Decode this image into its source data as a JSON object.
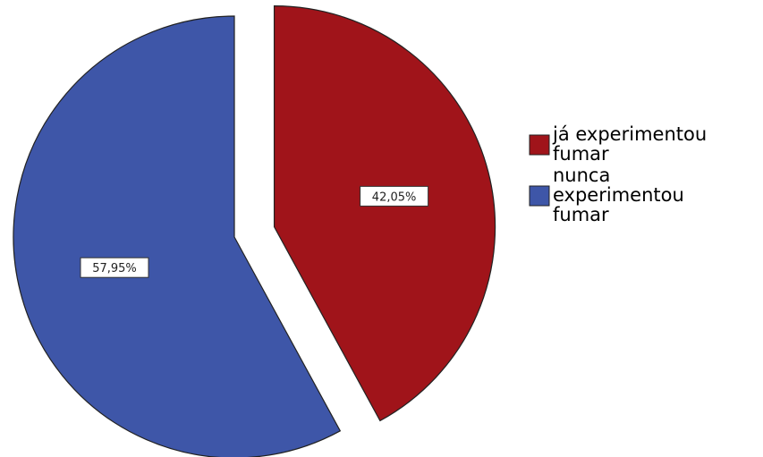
{
  "chart_data": {
    "type": "pie",
    "title": "",
    "slices": [
      {
        "label": "já experimentou fumar",
        "value": 42.05,
        "display": "42,05%",
        "color": "#A0141A",
        "exploded": true
      },
      {
        "label": "nunca experimentou fumar",
        "value": 57.95,
        "display": "57,95%",
        "color": "#3E56A8",
        "exploded": false
      }
    ],
    "legend": {
      "placement": "right",
      "entries": [
        {
          "lines": [
            "já experimentou",
            "fumar"
          ],
          "color": "#A0141A"
        },
        {
          "lines": [
            "nunca",
            "experimentou",
            "fumar"
          ],
          "color": "#3E56A8"
        }
      ]
    }
  }
}
